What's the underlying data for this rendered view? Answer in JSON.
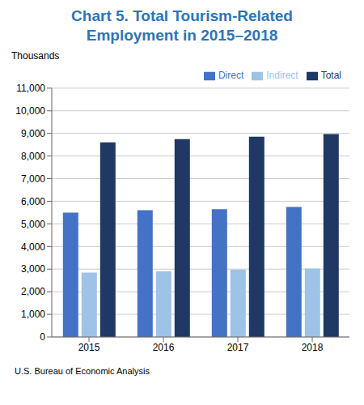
{
  "chart_data": {
    "type": "bar",
    "title": "Chart 5. Total Tourism-Related",
    "subtitle": "Employment in 2015–2018",
    "ylabel": "Thousands",
    "annotations": [
      "U.S. Bureau of Economic Analysis"
    ],
    "categories": [
      "2015",
      "2016",
      "2017",
      "2018"
    ],
    "series": [
      {
        "name": "Direct",
        "color": "#4472C4",
        "values": [
          5500,
          5600,
          5650,
          5750
        ]
      },
      {
        "name": "Indirect",
        "color": "#9DC3E6",
        "values": [
          2850,
          2900,
          2975,
          3025
        ]
      },
      {
        "name": "Total",
        "color": "#1F3864",
        "values": [
          8600,
          8750,
          8850,
          8975
        ]
      }
    ],
    "ylim": [
      0,
      11000
    ],
    "yticks": [
      0,
      {
        "value": 1000,
        "label": "1,000"
      },
      {
        "value": 2000,
        "label": "2,000"
      },
      {
        "value": 3000,
        "label": "3,000"
      },
      {
        "value": 4000,
        "label": "4,000"
      },
      {
        "value": 5000,
        "label": "5,000"
      },
      {
        "value": 6000,
        "label": "6,000"
      },
      {
        "value": 7000,
        "label": "7,000"
      },
      {
        "value": 8000,
        "label": "8,000"
      },
      {
        "value": 9000,
        "label": "9,000"
      },
      {
        "value": 10000,
        "label": "10,000"
      },
      {
        "value": 11000,
        "label": "11,000"
      }
    ],
    "grid": true,
    "legend": "upper right"
  }
}
